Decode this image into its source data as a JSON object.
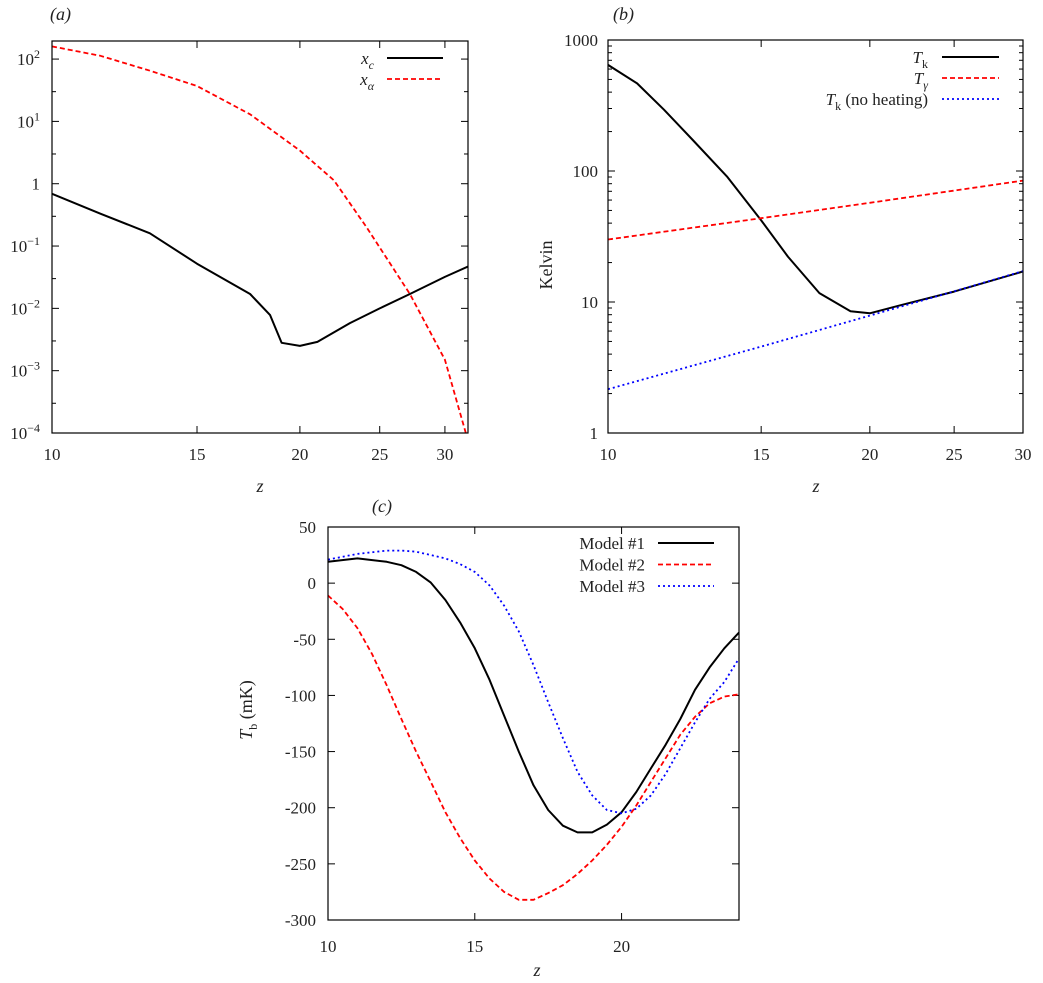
{
  "chart_data": [
    {
      "type": "line",
      "panel_label": "(a)",
      "xlabel": "z",
      "ylabel": "",
      "xscale": "log",
      "yscale": "log",
      "xlim": [
        10,
        32
      ],
      "ylim": [
        0.0001,
        195
      ],
      "xticks": [
        10,
        15,
        20,
        25,
        30
      ],
      "xtick_labels": [
        "10",
        "15",
        "20",
        "25",
        "30"
      ],
      "yticks": [
        100,
        10,
        1,
        0.1,
        0.01,
        0.001,
        0.0001
      ],
      "ytick_labels": [
        "10^2",
        "10^1",
        "1",
        "10^-1",
        "10^-2",
        "10^-3",
        "10^-4"
      ],
      "grid": false,
      "legend_position": "top-right",
      "series": [
        {
          "name": "x_c",
          "color": "#000000",
          "style": "solid",
          "x": [
            10,
            11.45,
            13.15,
            15,
            17.4,
            18.4,
            19.0,
            20,
            21,
            23,
            25,
            27.2,
            30,
            32
          ],
          "y": [
            0.69,
            0.33,
            0.16,
            0.052,
            0.017,
            0.0078,
            0.0028,
            0.0025,
            0.0029,
            0.0058,
            0.01,
            0.017,
            0.032,
            0.047
          ]
        },
        {
          "name": "x_α",
          "color": "#ff0000",
          "style": "dashed",
          "x": [
            10,
            11.45,
            13.15,
            15,
            17.4,
            20,
            22,
            24.1,
            27.2,
            30,
            31.8
          ],
          "y": [
            160,
            113,
            65,
            37,
            13,
            3.4,
            1.13,
            0.2,
            0.017,
            0.0015,
            0.0001
          ]
        }
      ]
    },
    {
      "type": "line",
      "panel_label": "(b)",
      "xlabel": "z",
      "ylabel": "Kelvin",
      "xscale": "log",
      "yscale": "log",
      "xlim": [
        10,
        30
      ],
      "ylim": [
        1,
        1000
      ],
      "xticks": [
        10,
        15,
        20,
        25,
        30
      ],
      "xtick_labels": [
        "10",
        "15",
        "20",
        "25",
        "30"
      ],
      "yticks": [
        1000,
        100,
        10,
        1
      ],
      "ytick_labels": [
        "1000",
        "100",
        "10",
        "1"
      ],
      "grid": false,
      "legend_position": "top-right",
      "series": [
        {
          "name": "T_k",
          "color": "#000000",
          "style": "solid",
          "x": [
            10,
            10.8,
            11.6,
            12.5,
            13.7,
            15,
            16.1,
            17.5,
            19.0,
            20,
            21.9,
            25,
            30
          ],
          "y": [
            646,
            466,
            293,
            174,
            91,
            42,
            22.2,
            11.7,
            8.5,
            8.2,
            9.6,
            12,
            17.1
          ]
        },
        {
          "name": "T_γ",
          "color": "#ff0000",
          "style": "dashed",
          "x": [
            10,
            15,
            20,
            25,
            30
          ],
          "y": [
            30.0,
            43.6,
            57.2,
            70.9,
            84.5
          ]
        },
        {
          "name": "T_k (no heating)",
          "color": "#0000ff",
          "style": "dotted",
          "x": [
            10,
            15,
            20,
            25,
            30
          ],
          "y": [
            2.16,
            4.57,
            7.87,
            12.07,
            17.2
          ]
        }
      ]
    },
    {
      "type": "line",
      "panel_label": "(c)",
      "xlabel": "z",
      "ylabel": "T_b (mK)",
      "xscale": "linear",
      "yscale": "linear",
      "xlim": [
        10,
        24
      ],
      "ylim": [
        -300,
        50
      ],
      "xticks": [
        10,
        15,
        20
      ],
      "xtick_labels": [
        "10",
        "15",
        "20"
      ],
      "yticks": [
        50,
        0,
        -50,
        -100,
        -150,
        -200,
        -250,
        -300
      ],
      "ytick_labels": [
        "50",
        "0",
        "-50",
        "-100",
        "-150",
        "-200",
        "-250",
        "-300"
      ],
      "grid": false,
      "legend_position": "top-right",
      "series": [
        {
          "name": "Model #1",
          "color": "#000000",
          "style": "solid",
          "x": [
            10,
            11,
            12,
            12.5,
            13,
            13.5,
            14,
            14.5,
            15,
            15.5,
            16,
            16.5,
            17,
            17.5,
            18,
            18.5,
            19,
            19.5,
            20,
            20.5,
            21,
            21.5,
            22,
            22.5,
            23,
            23.5,
            24
          ],
          "y": [
            19,
            22,
            19,
            16,
            10,
            0.5,
            -15,
            -35,
            -58,
            -86,
            -118,
            -150,
            -180,
            -202,
            -216,
            -222,
            -222,
            -215,
            -204,
            -186,
            -165,
            -144,
            -121,
            -95,
            -75,
            -58,
            -44
          ]
        },
        {
          "name": "Model #2",
          "color": "#ff0000",
          "style": "dashed",
          "x": [
            10,
            10.5,
            11,
            11.5,
            12,
            12.5,
            13,
            13.5,
            14,
            14.5,
            15,
            15.5,
            16,
            16.5,
            17,
            17.5,
            18,
            18.5,
            19,
            19.5,
            20,
            20.5,
            21,
            21.5,
            22,
            22.5,
            23,
            23.5,
            24
          ],
          "y": [
            -11,
            -23,
            -40,
            -63,
            -91,
            -121,
            -150,
            -177,
            -204,
            -227,
            -247,
            -263,
            -275,
            -282,
            -282,
            -276,
            -269,
            -259,
            -247,
            -233,
            -217,
            -198,
            -177,
            -156,
            -135,
            -119,
            -107,
            -101,
            -99
          ]
        },
        {
          "name": "Model #3",
          "color": "#0000ff",
          "style": "dotted",
          "x": [
            10,
            11,
            12,
            12.5,
            13,
            14,
            14.5,
            15,
            15.5,
            16,
            16.5,
            17,
            17.5,
            18,
            18.5,
            19,
            19.5,
            20,
            20.5,
            21,
            21.5,
            22,
            22.5,
            23,
            23.5,
            24
          ],
          "y": [
            21,
            26,
            29,
            29,
            28,
            22,
            17,
            10,
            -2,
            -20,
            -43,
            -73,
            -106,
            -138,
            -168,
            -189,
            -202,
            -205,
            -201,
            -189,
            -170,
            -147,
            -124,
            -103,
            -88,
            -67
          ]
        }
      ]
    }
  ]
}
